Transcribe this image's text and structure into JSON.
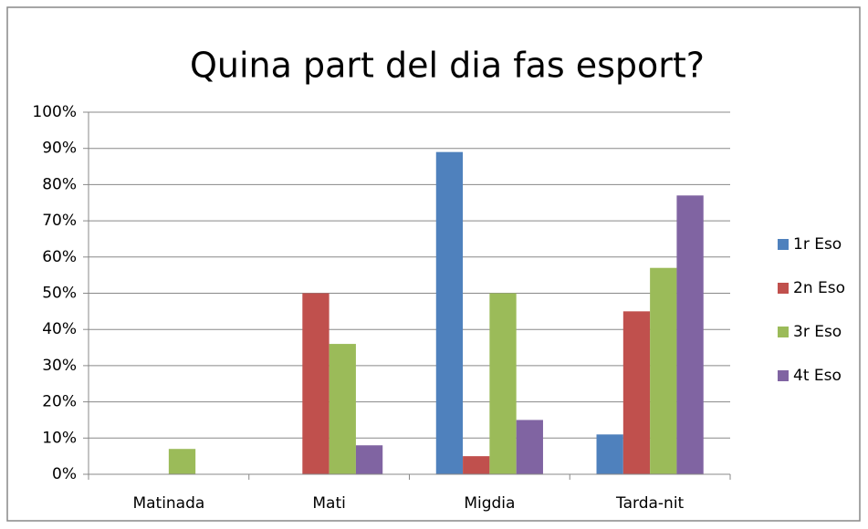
{
  "chart_data": {
    "type": "bar",
    "title": "Quina part del dia fas esport?",
    "categories": [
      "Matinada",
      "Mati",
      "Migdia",
      "Tarda-nit"
    ],
    "series": [
      {
        "name": "1r Eso",
        "color": "#4f81bd",
        "values": [
          0,
          0,
          89,
          11
        ]
      },
      {
        "name": "2n Eso",
        "color": "#c0504d",
        "values": [
          0,
          50,
          5,
          45
        ]
      },
      {
        "name": "3r Eso",
        "color": "#9bbb59",
        "values": [
          7,
          36,
          50,
          57
        ]
      },
      {
        "name": "4t Eso",
        "color": "#8064a2",
        "values": [
          0,
          8,
          15,
          77
        ]
      }
    ],
    "ylim": [
      0,
      100
    ],
    "yticks": [
      {
        "value": 0,
        "label": "0%"
      },
      {
        "value": 10,
        "label": "10%"
      },
      {
        "value": 20,
        "label": "20%"
      },
      {
        "value": 30,
        "label": "30%"
      },
      {
        "value": 40,
        "label": "40%"
      },
      {
        "value": 50,
        "label": "50%"
      },
      {
        "value": 60,
        "label": "60%"
      },
      {
        "value": 70,
        "label": "70%"
      },
      {
        "value": 80,
        "label": "80%"
      },
      {
        "value": 90,
        "label": "90%"
      },
      {
        "value": 100,
        "label": "100%"
      }
    ],
    "grid": true,
    "legend": "right"
  }
}
